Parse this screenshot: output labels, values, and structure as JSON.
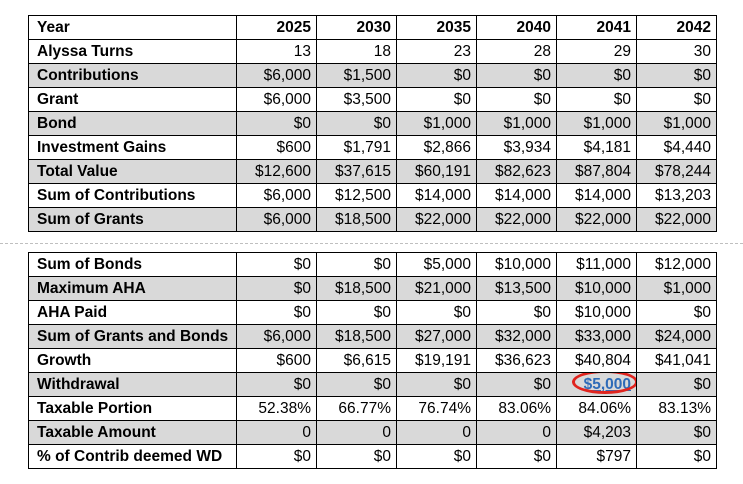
{
  "top_table": {
    "rows": [
      {
        "label": "Year",
        "values": [
          "2025",
          "2030",
          "2035",
          "2040",
          "2041",
          "2042"
        ]
      },
      {
        "label": "Alyssa Turns",
        "values": [
          "13",
          "18",
          "23",
          "28",
          "29",
          "30"
        ]
      },
      {
        "label": "Contributions",
        "values": [
          "$6,000",
          "$1,500",
          "$0",
          "$0",
          "$0",
          "$0"
        ]
      },
      {
        "label": "Grant",
        "values": [
          "$6,000",
          "$3,500",
          "$0",
          "$0",
          "$0",
          "$0"
        ]
      },
      {
        "label": "Bond",
        "values": [
          "$0",
          "$0",
          "$1,000",
          "$1,000",
          "$1,000",
          "$1,000"
        ]
      },
      {
        "label": "Investment Gains",
        "values": [
          "$600",
          "$1,791",
          "$2,866",
          "$3,934",
          "$4,181",
          "$4,440"
        ]
      },
      {
        "label": "Total Value",
        "values": [
          "$12,600",
          "$37,615",
          "$60,191",
          "$82,623",
          "$87,804",
          "$78,244"
        ]
      },
      {
        "label": "Sum of Contributions",
        "values": [
          "$6,000",
          "$12,500",
          "$14,000",
          "$14,000",
          "$14,000",
          "$13,203"
        ]
      },
      {
        "label": "Sum of Grants",
        "values": [
          "$6,000",
          "$18,500",
          "$22,000",
          "$22,000",
          "$22,000",
          "$22,000"
        ]
      }
    ]
  },
  "bottom_table": {
    "rows": [
      {
        "label": "Sum of Bonds",
        "values": [
          "$0",
          "$0",
          "$5,000",
          "$10,000",
          "$11,000",
          "$12,000"
        ]
      },
      {
        "label": "Maximum AHA",
        "values": [
          "$0",
          "$18,500",
          "$21,000",
          "$13,500",
          "$10,000",
          "$1,000"
        ]
      },
      {
        "label": "AHA Paid",
        "values": [
          "$0",
          "$0",
          "$0",
          "$0",
          "$10,000",
          "$0"
        ]
      },
      {
        "label": "Sum of Grants and Bonds",
        "values": [
          "$6,000",
          "$18,500",
          "$27,000",
          "$32,000",
          "$33,000",
          "$24,000"
        ]
      },
      {
        "label": "Growth",
        "values": [
          "$600",
          "$6,615",
          "$19,191",
          "$36,623",
          "$40,804",
          "$41,041"
        ]
      },
      {
        "label": "Withdrawal",
        "values": [
          "$0",
          "$0",
          "$0",
          "$0",
          "$5,000",
          "$0"
        ]
      },
      {
        "label": "Taxable Portion",
        "values": [
          "52.38%",
          "66.77%",
          "76.74%",
          "83.06%",
          "84.06%",
          "83.13%"
        ]
      },
      {
        "label": "Taxable Amount",
        "values": [
          "0",
          "0",
          "0",
          "0",
          "$4,203",
          "$0"
        ]
      },
      {
        "label": "% of Contrib deemed WD",
        "values": [
          "$0",
          "$0",
          "$0",
          "$0",
          "$797",
          "$0"
        ]
      }
    ]
  },
  "colors": {
    "shade": "#d9d9d9",
    "highlight_text": "#2e6bb8",
    "highlight_circle": "#e0241e"
  }
}
